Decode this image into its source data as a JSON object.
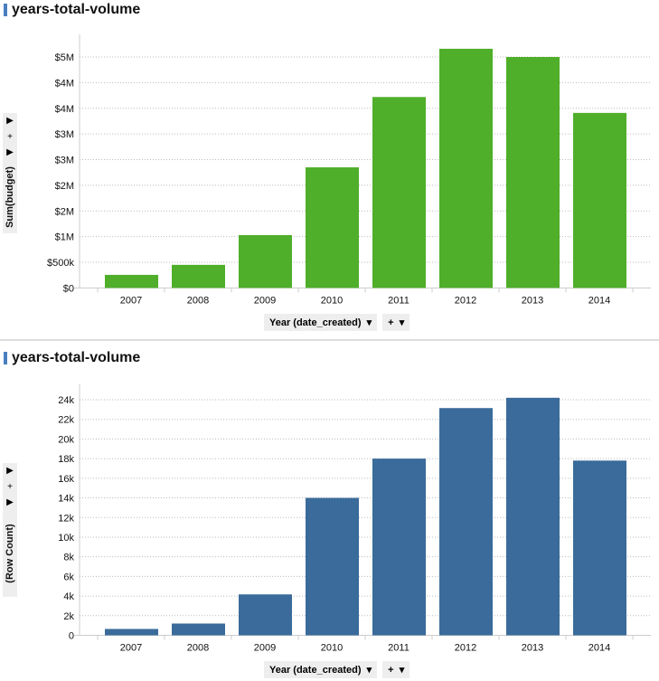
{
  "charts": [
    {
      "title": "years-total-volume",
      "ylabel": "Sum(budget)",
      "xlabel": "Year (date_created)",
      "add": "+",
      "chart_data": {
        "type": "bar",
        "categories": [
          "2007",
          "2008",
          "2009",
          "2010",
          "2011",
          "2012",
          "2013",
          "2014"
        ],
        "values": [
          255000,
          450000,
          1030000,
          2350000,
          3720000,
          4660000,
          4500000,
          3410000
        ],
        "ylim": [
          0,
          4500000
        ],
        "yticks": [
          0,
          500000,
          1000000,
          1500000,
          2000000,
          2500000,
          3000000,
          3500000,
          4000000,
          4500000
        ],
        "ytick_labels": [
          "$0",
          "$500k",
          "$1M",
          "$2M",
          "$2M",
          "$3M",
          "$3M",
          "$4M",
          "$4M",
          "$5M"
        ],
        "ylabel": "Sum(budget)",
        "xlabel": "Year (date_created)",
        "color": "#4fae2a",
        "grid": true
      }
    },
    {
      "title": "years-total-volume",
      "ylabel": "(Row Count)",
      "xlabel": "Year (date_created)",
      "add": "+",
      "chart_data": {
        "type": "bar",
        "categories": [
          "2007",
          "2008",
          "2009",
          "2010",
          "2011",
          "2012",
          "2013",
          "2014"
        ],
        "values": [
          650,
          1200,
          4170,
          14000,
          18000,
          23150,
          24200,
          17800
        ],
        "ylim": [
          0,
          24000
        ],
        "yticks": [
          0,
          2000,
          4000,
          6000,
          8000,
          10000,
          12000,
          14000,
          16000,
          18000,
          20000,
          22000,
          24000
        ],
        "ytick_labels": [
          "0",
          "2k",
          "4k",
          "6k",
          "8k",
          "10k",
          "12k",
          "14k",
          "16k",
          "18k",
          "20k",
          "22k",
          "24k"
        ],
        "ylabel": "(Row Count)",
        "xlabel": "Year (date_created)",
        "color": "#3a6b9a",
        "grid": true
      }
    }
  ]
}
